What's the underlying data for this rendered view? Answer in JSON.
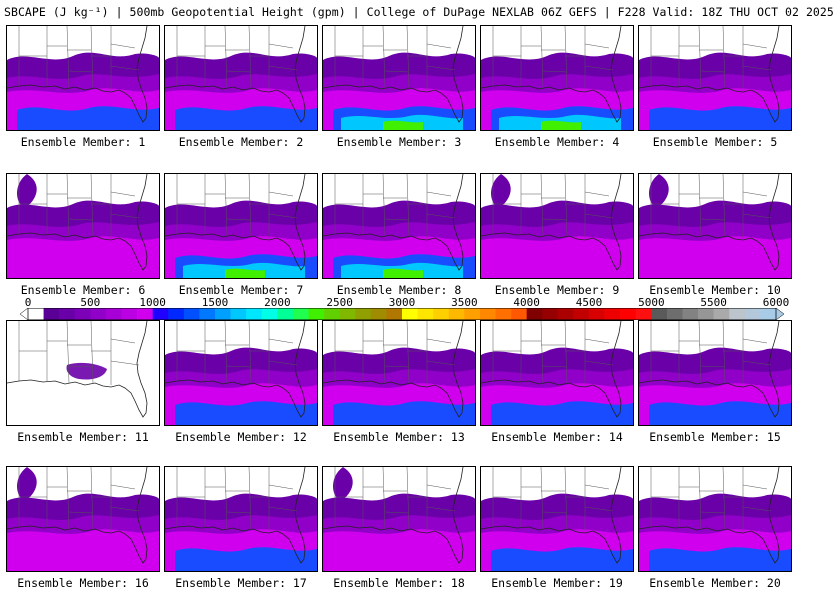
{
  "title": "SBCAPE (J kg⁻¹) | 500mb Geopotential Height (gpm) | College of DuPage NEXLAB 06Z GEFS | F228 Valid: 18Z THU OCT 02 2025",
  "colorbar": {
    "tick_labels": [
      "0",
      "500",
      "1000",
      "1500",
      "2000",
      "2500",
      "3000",
      "3500",
      "4000",
      "4500",
      "5000",
      "5500",
      "6000"
    ],
    "range": [
      0,
      6000
    ],
    "step": 125,
    "segment_colors": [
      "#ffffff",
      "#5a0096",
      "#6a00a8",
      "#7c00b8",
      "#9000c8",
      "#a600d6",
      "#bc00e4",
      "#d000ee",
      "#2000ff",
      "#0028ff",
      "#0050ff",
      "#0078ff",
      "#00a0ff",
      "#00c8ff",
      "#00e6ff",
      "#00ffe6",
      "#00ff96",
      "#20ff50",
      "#40f000",
      "#60d000",
      "#80b800",
      "#90a000",
      "#a08c00",
      "#b07800",
      "#ffff00",
      "#ffe600",
      "#ffd000",
      "#ffb800",
      "#ffa000",
      "#ff8800",
      "#ff7000",
      "#ff5800",
      "#800000",
      "#960000",
      "#ac0000",
      "#c20000",
      "#d80000",
      "#ee0000",
      "#ff0000",
      "#ff1010",
      "#5a5a5a",
      "#6e6e6e",
      "#828282",
      "#969696",
      "#aaaaaa",
      "#bcc4cc",
      "#b4c8dc",
      "#a8cce8"
    ]
  },
  "colors": {
    "purple_dark": "#6a00a8",
    "purple": "#9000c8",
    "magenta": "#d000ee",
    "blue": "#1a4cff",
    "cyan": "#00c8ff",
    "green": "#40f000"
  },
  "members": [
    {
      "label": "Ensemble Member: 1",
      "intensity": "moderate"
    },
    {
      "label": "Ensemble Member: 2",
      "intensity": "moderate"
    },
    {
      "label": "Ensemble Member: 3",
      "intensity": "high"
    },
    {
      "label": "Ensemble Member: 4",
      "intensity": "high"
    },
    {
      "label": "Ensemble Member: 5",
      "intensity": "moderate"
    },
    {
      "label": "Ensemble Member: 6",
      "intensity": "low"
    },
    {
      "label": "Ensemble Member: 7",
      "intensity": "high"
    },
    {
      "label": "Ensemble Member: 8",
      "intensity": "high"
    },
    {
      "label": "Ensemble Member: 9",
      "intensity": "low"
    },
    {
      "label": "Ensemble Member: 10",
      "intensity": "low"
    },
    {
      "label": "Ensemble Member: 11",
      "intensity": "none"
    },
    {
      "label": "Ensemble Member: 12",
      "intensity": "moderate"
    },
    {
      "label": "Ensemble Member: 13",
      "intensity": "moderate"
    },
    {
      "label": "Ensemble Member: 14",
      "intensity": "moderate"
    },
    {
      "label": "Ensemble Member: 15",
      "intensity": "moderate"
    },
    {
      "label": "Ensemble Member: 16",
      "intensity": "low"
    },
    {
      "label": "Ensemble Member: 17",
      "intensity": "moderate"
    },
    {
      "label": "Ensemble Member: 18",
      "intensity": "low"
    },
    {
      "label": "Ensemble Member: 19",
      "intensity": "moderate"
    },
    {
      "label": "Ensemble Member: 20",
      "intensity": "moderate"
    }
  ]
}
